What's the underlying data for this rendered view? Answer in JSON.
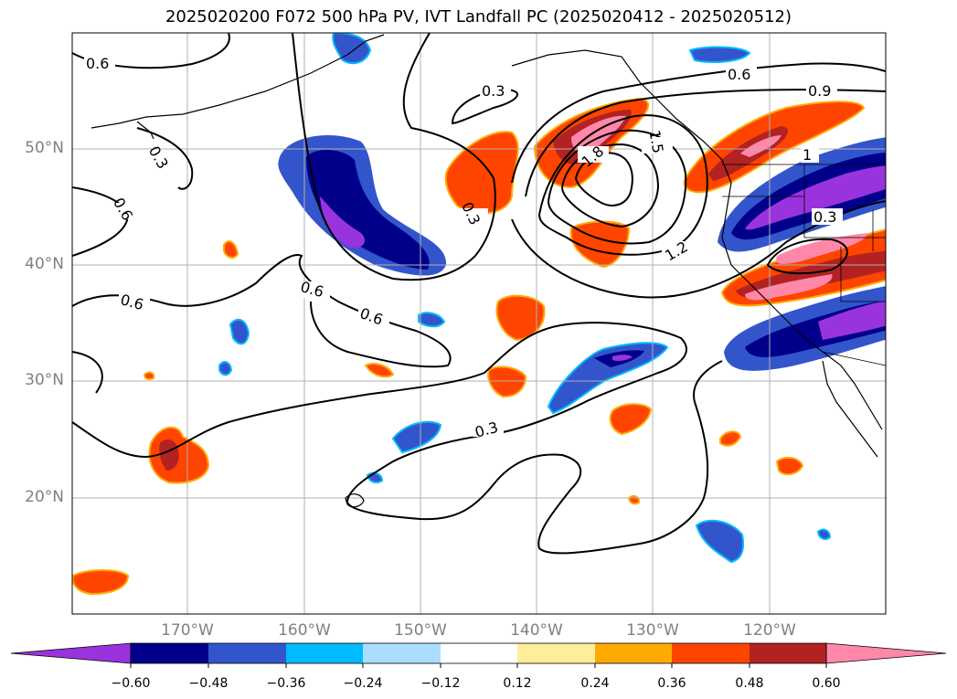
{
  "title": "2025020200 F072 500 hPa PV, IVT Landfall PC (2025020412 - 2025020512)",
  "latitude_labels": [
    "50°N",
    "40°N",
    "30°N",
    "20°N"
  ],
  "longitude_labels": [
    "170°W",
    "160°W",
    "150°W",
    "140°W",
    "130°W",
    "120°W"
  ],
  "contour_labels": [
    "0.6",
    "0.3",
    "0.6",
    "0.6",
    "0.6",
    "0.6",
    "0.3",
    "0.3",
    "1.8",
    "1.5",
    "1.2",
    "0.6",
    "0.9",
    "1",
    "0.3",
    "0.3"
  ],
  "colorbar": {
    "tick_labels": [
      "−0.60",
      "−0.48",
      "−0.36",
      "−0.24",
      "−0.12",
      "0.12",
      "0.24",
      "0.36",
      "0.48",
      "0.60"
    ],
    "colors": [
      "#9933dd",
      "#00008b",
      "#3355cc",
      "#00bbff",
      "#aaddff",
      "#ffffff",
      "#ffee99",
      "#ffaa00",
      "#ff4400",
      "#b22222",
      "#ff88aa"
    ]
  },
  "chart_data": {
    "type": "heatmap",
    "title": "2025020200 F072 500 hPa PV, IVT Landfall PC (2025020412 - 2025020512)",
    "x_ticks": [
      "170°W",
      "160°W",
      "150°W",
      "140°W",
      "130°W",
      "120°W"
    ],
    "y_ticks": [
      "50°N",
      "40°N",
      "30°N",
      "20°N"
    ],
    "color_levels": [
      -0.6,
      -0.48,
      -0.36,
      -0.24,
      -0.12,
      0.12,
      0.24,
      0.36,
      0.48,
      0.6
    ],
    "contour_levels": [
      0.3,
      0.6,
      0.9,
      1.2,
      1.5,
      1.8
    ],
    "colorbar": "horizontal, bottom, extended both ends",
    "grid": true
  }
}
